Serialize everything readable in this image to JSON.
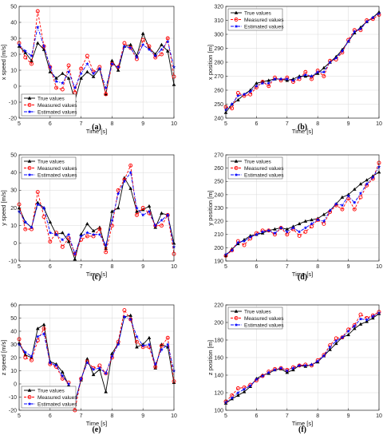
{
  "chart_data": [
    {
      "type": "line",
      "caption": "(a)",
      "xlabel": "Time [s]",
      "ylabel": "x speed [m/s]",
      "xlim": [
        5,
        10
      ],
      "ylim": [
        -20,
        50
      ],
      "xticks": [
        5,
        6,
        7,
        8,
        9,
        10
      ],
      "yticks": [
        -20,
        -10,
        0,
        10,
        20,
        30,
        40,
        50
      ],
      "grid": true,
      "legend": "bottom-left",
      "x": [
        5.0,
        5.2,
        5.4,
        5.6,
        5.8,
        6.0,
        6.2,
        6.4,
        6.6,
        6.8,
        7.0,
        7.2,
        7.4,
        7.6,
        7.8,
        8.0,
        8.2,
        8.4,
        8.6,
        8.8,
        9.0,
        9.2,
        9.4,
        9.6,
        9.8,
        10.0
      ],
      "series": [
        {
          "name": "True values",
          "values": [
            25,
            21,
            16,
            27,
            23,
            9,
            5,
            8,
            5,
            -9,
            5,
            9,
            6,
            11,
            -5,
            16,
            10,
            25,
            26,
            19,
            33,
            24,
            20,
            26,
            22,
            1
          ]
        },
        {
          "name": "Measured values",
          "values": [
            27,
            18,
            14,
            47,
            25,
            12,
            -1,
            -2,
            13,
            -4,
            11,
            19,
            9,
            12,
            -5,
            14,
            12,
            27,
            24,
            17,
            29,
            25,
            18,
            20,
            30,
            6
          ]
        },
        {
          "name": "Estimated values",
          "values": [
            26,
            22,
            19,
            37,
            25,
            12,
            3,
            2,
            9,
            -1,
            8,
            14,
            8,
            11,
            -1,
            14,
            12,
            25,
            24,
            18,
            26,
            23,
            19,
            23,
            28,
            12
          ]
        }
      ]
    },
    {
      "type": "line",
      "caption": "(b)",
      "xlabel": "Time [s]",
      "ylabel": "x position [m]",
      "xlim": [
        5,
        10
      ],
      "ylim": [
        240,
        320
      ],
      "xticks": [
        5,
        6,
        7,
        8,
        9,
        10
      ],
      "yticks": [
        240,
        250,
        260,
        270,
        280,
        290,
        300,
        310,
        320
      ],
      "grid": true,
      "legend": "top-left",
      "x": [
        5.0,
        5.2,
        5.4,
        5.6,
        5.8,
        6.0,
        6.2,
        6.4,
        6.6,
        6.8,
        7.0,
        7.2,
        7.4,
        7.6,
        7.8,
        8.0,
        8.2,
        8.4,
        8.6,
        8.8,
        9.0,
        9.2,
        9.4,
        9.6,
        9.8,
        10.0
      ],
      "series": [
        {
          "name": "True values",
          "values": [
            244,
            250,
            253,
            257,
            260,
            265,
            266,
            267,
            268,
            268,
            267,
            268,
            270,
            270,
            270,
            272,
            276,
            280,
            284,
            289,
            295,
            301,
            305,
            309,
            312,
            316
          ]
        },
        {
          "name": "Measured values",
          "values": [
            248,
            247,
            258,
            256,
            257,
            262,
            266,
            263,
            269,
            267,
            269,
            266,
            268,
            273,
            268,
            274,
            270,
            281,
            282,
            287,
            296,
            303,
            303,
            310,
            311,
            314
          ]
        },
        {
          "name": "Estimated values",
          "values": [
            246,
            250,
            256,
            257,
            259,
            263,
            265,
            265,
            268,
            268,
            268,
            267,
            269,
            271,
            270,
            273,
            273,
            280,
            283,
            288,
            295,
            302,
            304,
            309,
            312,
            315
          ]
        }
      ]
    },
    {
      "type": "line",
      "caption": "(c)",
      "xlabel": "Time [s]",
      "ylabel": "y speed [m/s]",
      "xlim": [
        5,
        10
      ],
      "ylim": [
        -10,
        50
      ],
      "xticks": [
        5,
        6,
        7,
        8,
        9,
        10
      ],
      "yticks": [
        -10,
        0,
        10,
        20,
        30,
        40,
        50
      ],
      "grid": true,
      "legend": "top-left",
      "x": [
        5.0,
        5.2,
        5.4,
        5.6,
        5.8,
        6.0,
        6.2,
        6.4,
        6.6,
        6.8,
        7.0,
        7.2,
        7.4,
        7.6,
        7.8,
        8.0,
        8.2,
        8.4,
        8.6,
        8.8,
        9.0,
        9.2,
        9.4,
        9.6,
        9.8,
        10.0
      ],
      "series": [
        {
          "name": "True values",
          "values": [
            20,
            12,
            9,
            23,
            20,
            12,
            5,
            6,
            1,
            -9,
            5,
            11,
            7,
            9,
            -3,
            18,
            20,
            37,
            31,
            18,
            19,
            21,
            9,
            17,
            16,
            0
          ]
        },
        {
          "name": "Measured values",
          "values": [
            22,
            8,
            8,
            29,
            15,
            1,
            6,
            -2,
            3,
            -6,
            2,
            4,
            4,
            8,
            -5,
            10,
            30,
            36,
            44,
            16,
            20,
            17,
            10,
            10,
            16,
            -6
          ]
        },
        {
          "name": "Estimated values",
          "values": [
            18,
            12,
            9,
            22,
            20,
            6,
            5,
            2,
            5,
            -6,
            4,
            6,
            5,
            5,
            -1,
            13,
            28,
            35,
            40,
            20,
            16,
            18,
            10,
            13,
            16,
            -2
          ]
        }
      ]
    },
    {
      "type": "line",
      "caption": "(d)",
      "xlabel": "Time [s]",
      "ylabel": "y position [m]",
      "xlim": [
        5,
        10
      ],
      "ylim": [
        190,
        270
      ],
      "xticks": [
        5,
        6,
        7,
        8,
        9,
        10
      ],
      "yticks": [
        190,
        200,
        210,
        220,
        230,
        240,
        250,
        260,
        270
      ],
      "grid": true,
      "legend": "top-left",
      "x": [
        5.0,
        5.2,
        5.4,
        5.6,
        5.8,
        6.0,
        6.2,
        6.4,
        6.6,
        6.8,
        7.0,
        7.2,
        7.4,
        7.6,
        7.8,
        8.0,
        8.2,
        8.4,
        8.6,
        8.8,
        9.0,
        9.2,
        9.4,
        9.6,
        9.8,
        10.0
      ],
      "series": [
        {
          "name": "True values",
          "values": [
            194,
            199,
            203,
            206,
            209,
            210,
            211,
            213,
            214,
            215,
            214,
            216,
            218,
            220,
            221,
            222,
            225,
            228,
            233,
            238,
            240,
            244,
            248,
            251,
            254,
            257
          ]
        },
        {
          "name": "Measured values",
          "values": [
            194,
            198,
            205,
            202,
            207,
            211,
            213,
            213,
            210,
            215,
            210,
            214,
            209,
            212,
            216,
            221,
            218,
            227,
            232,
            229,
            237,
            229,
            238,
            247,
            252,
            264
          ]
        },
        {
          "name": "Estimated values",
          "values": [
            195,
            198,
            204,
            205,
            208,
            210,
            212,
            213,
            211,
            215,
            212,
            215,
            212,
            215,
            218,
            221,
            220,
            228,
            233,
            232,
            239,
            234,
            241,
            248,
            253,
            261
          ]
        }
      ]
    },
    {
      "type": "line",
      "caption": "(e)",
      "xlabel": "Time [s]",
      "ylabel": "z speed [m/s]",
      "xlim": [
        5,
        10
      ],
      "ylim": [
        -20,
        60
      ],
      "xticks": [
        5,
        6,
        7,
        8,
        9,
        10
      ],
      "yticks": [
        -20,
        -10,
        0,
        10,
        20,
        30,
        40,
        50,
        60
      ],
      "grid": true,
      "legend": "bottom-left",
      "x": [
        5.0,
        5.2,
        5.4,
        5.6,
        5.8,
        6.0,
        6.2,
        6.4,
        6.6,
        6.8,
        7.0,
        7.2,
        7.4,
        7.6,
        7.8,
        8.0,
        8.2,
        8.4,
        8.6,
        8.8,
        9.0,
        9.2,
        9.4,
        9.6,
        9.8,
        10.0
      ],
      "series": [
        {
          "name": "True values",
          "values": [
            31,
            22,
            20,
            42,
            45,
            17,
            15,
            9,
            -1,
            -14,
            3,
            19,
            7,
            11,
            -6,
            23,
            31,
            51,
            52,
            28,
            30,
            35,
            12,
            30,
            28,
            1
          ]
        },
        {
          "name": "Measured values",
          "values": [
            34,
            20,
            18,
            33,
            42,
            15,
            13,
            4,
            1,
            -20,
            4,
            17,
            12,
            14,
            8,
            20,
            32,
            56,
            49,
            32,
            28,
            28,
            13,
            29,
            35,
            2
          ]
        },
        {
          "name": "Estimated values",
          "values": [
            30,
            24,
            21,
            36,
            38,
            16,
            14,
            6,
            0,
            -15,
            4,
            16,
            11,
            12,
            8,
            21,
            30,
            51,
            49,
            36,
            29,
            30,
            15,
            26,
            30,
            10
          ]
        }
      ]
    },
    {
      "type": "line",
      "caption": "(f)",
      "xlabel": "Time [s]",
      "ylabel": "z position [m]",
      "xlim": [
        5,
        10
      ],
      "ylim": [
        100,
        220
      ],
      "xticks": [
        5,
        6,
        7,
        8,
        9,
        10
      ],
      "yticks": [
        100,
        120,
        140,
        160,
        180,
        200,
        220
      ],
      "grid": true,
      "legend": "top-left",
      "x": [
        5.0,
        5.2,
        5.4,
        5.6,
        5.8,
        6.0,
        6.2,
        6.4,
        6.6,
        6.8,
        7.0,
        7.2,
        7.4,
        7.6,
        7.8,
        8.0,
        8.2,
        8.4,
        8.6,
        8.8,
        9.0,
        9.2,
        9.4,
        9.6,
        9.8,
        10.0
      ],
      "series": [
        {
          "name": "True values",
          "values": [
            108,
            113,
            117,
            121,
            127,
            136,
            140,
            142,
            146,
            147,
            143,
            146,
            151,
            150,
            152,
            155,
            162,
            169,
            176,
            183,
            186,
            193,
            198,
            201,
            205,
            210
          ]
        },
        {
          "name": "Measured values",
          "values": [
            110,
            117,
            125,
            126,
            129,
            134,
            139,
            144,
            147,
            148,
            146,
            149,
            151,
            152,
            151,
            157,
            163,
            174,
            182,
            183,
            192,
            197,
            209,
            205,
            208,
            212
          ]
        },
        {
          "name": "Estimated values",
          "values": [
            109,
            114,
            120,
            124,
            128,
            135,
            139,
            143,
            146,
            148,
            145,
            148,
            151,
            151,
            152,
            156,
            162,
            172,
            179,
            183,
            190,
            196,
            204,
            203,
            207,
            211
          ]
        }
      ]
    }
  ],
  "styles": {
    "series_colors": [
      "#000000",
      "#ff0000",
      "#0000ff"
    ],
    "series_markers": [
      "triangle",
      "circle",
      "star"
    ],
    "series_dash": [
      "solid",
      "dashed",
      "dash-dot"
    ],
    "grid_color": "#d9d9d9",
    "axis_color": "#262626"
  }
}
